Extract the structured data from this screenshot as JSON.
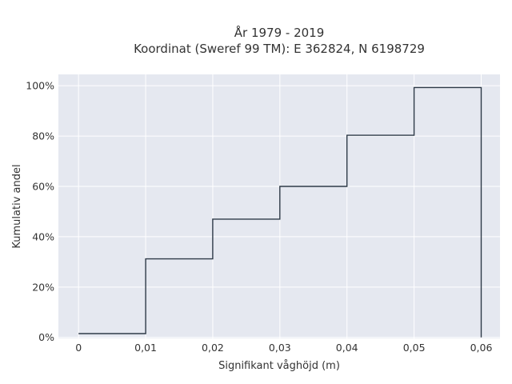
{
  "chart_data": {
    "type": "line",
    "line_shape": "step",
    "title_lines": [
      "År 1979 - 2019",
      "Koordinat (Sweref 99 TM): E 362824, N 6198729"
    ],
    "xlabel": "Signifikant våghöjd (m)",
    "ylabel": "Kumulativ andel",
    "x_ticks": [
      "0",
      "0,01",
      "0,02",
      "0,03",
      "0,04",
      "0,05",
      "0,06"
    ],
    "y_ticks": [
      "0%",
      "20%",
      "40%",
      "60%",
      "80%",
      "100%"
    ],
    "x_tick_values": [
      0,
      0.01,
      0.02,
      0.03,
      0.04,
      0.05,
      0.06
    ],
    "y_tick_values": [
      0,
      0.2,
      0.4,
      0.6,
      0.8,
      1.0
    ],
    "xlim": [
      -0.003,
      0.0628
    ],
    "ylim": [
      -0.004,
      1.045
    ],
    "grid": true,
    "colors": {
      "plot_background": "#e5e8f0",
      "line": "#2e3a48"
    },
    "series": [
      {
        "x": [
          0,
          0.01,
          0.01,
          0.02,
          0.02,
          0.03,
          0.03,
          0.04,
          0.04,
          0.05,
          0.05,
          0.06,
          0.06
        ],
        "y": [
          0.015,
          0.015,
          0.312,
          0.312,
          0.47,
          0.47,
          0.6,
          0.6,
          0.803,
          0.803,
          0.993,
          0.993,
          0
        ]
      }
    ]
  }
}
